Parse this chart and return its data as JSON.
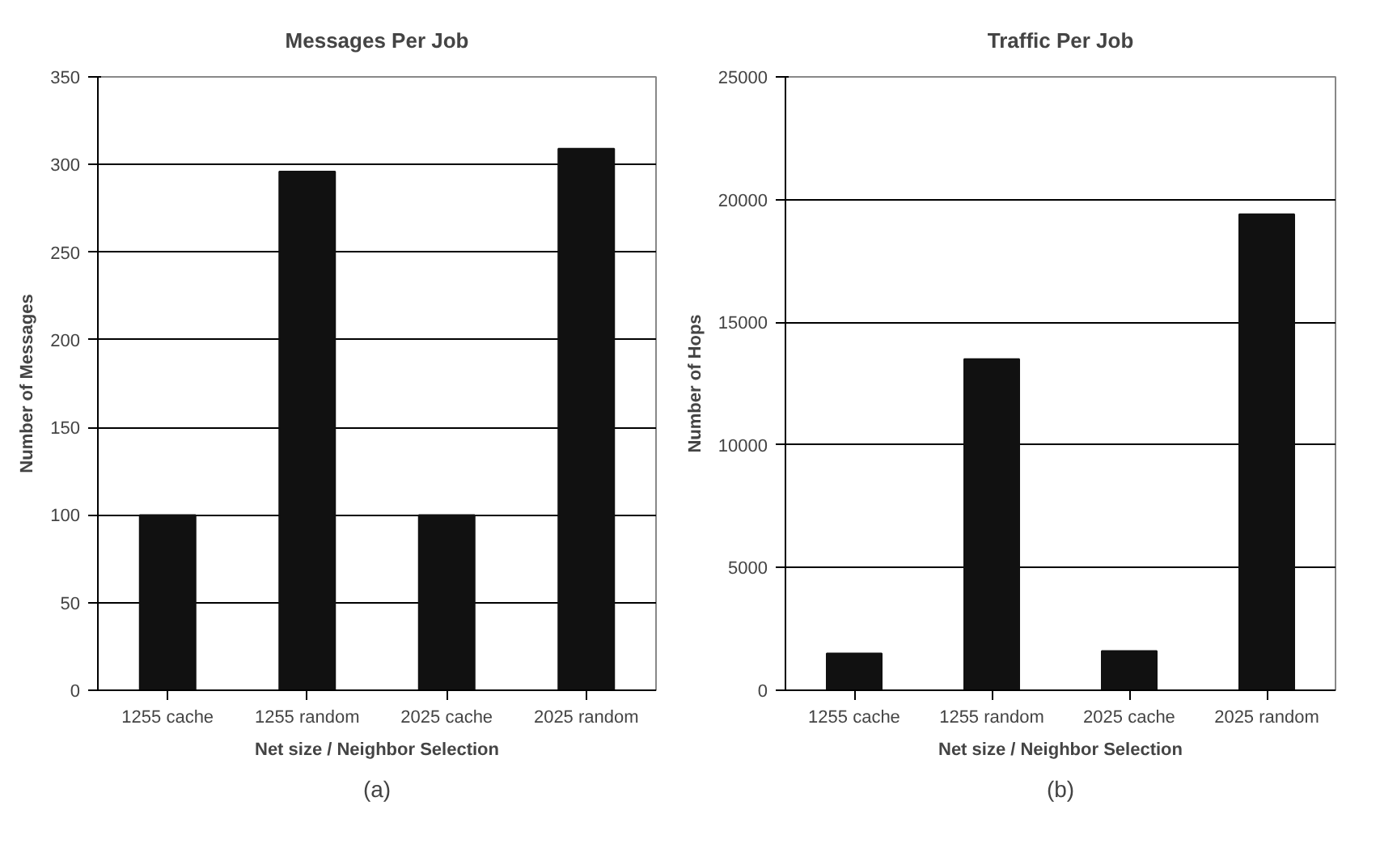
{
  "chart_data": [
    {
      "type": "bar",
      "title": "Messages Per Job",
      "xlabel": "Net size / Neighbor Selection",
      "ylabel": "Number of Messages",
      "categories": [
        "1255 cache",
        "1255 random",
        "2025 cache",
        "2025 random"
      ],
      "values": [
        100,
        296,
        100,
        309
      ],
      "color": "#111111",
      "ylim": [
        0,
        350
      ],
      "yticks": [
        0,
        50,
        100,
        150,
        200,
        250,
        300,
        350
      ],
      "grid": "y",
      "annotations": [
        "(a)"
      ]
    },
    {
      "type": "bar",
      "title": "Traffic Per Job",
      "xlabel": "Net size / Neighbor Selection",
      "ylabel": "Number of Hops",
      "categories": [
        "1255 cache",
        "1255 random",
        "2025 cache",
        "2025 random"
      ],
      "values": [
        1500,
        13500,
        1600,
        19400
      ],
      "color": "#111111",
      "ylim": [
        0,
        25000
      ],
      "yticks": [
        0,
        5000,
        10000,
        15000,
        20000,
        25000
      ],
      "grid": "y",
      "annotations": [
        "(b)"
      ]
    }
  ]
}
